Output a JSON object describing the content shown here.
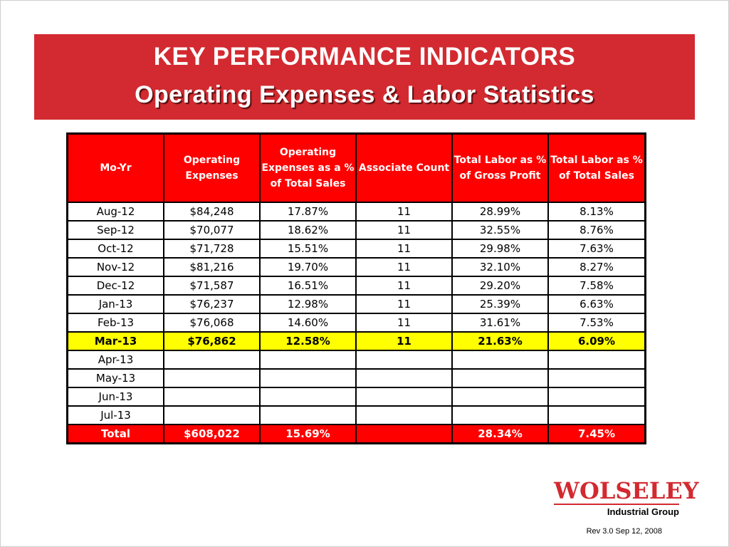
{
  "banner": {
    "title": "KEY PERFORMANCE INDICATORS",
    "subtitle": "Operating Expenses & Labor Statistics"
  },
  "table": {
    "headers": [
      "Mo-Yr",
      "Operating Expenses",
      "Operating Expenses as a % of Total Sales",
      "Associate Count",
      "Total Labor as % of Gross Profit",
      "Total Labor as % of Total Sales"
    ],
    "rows": [
      [
        "Aug-12",
        "$84,248",
        "17.87%",
        "11",
        "28.99%",
        "8.13%"
      ],
      [
        "Sep-12",
        "$70,077",
        "18.62%",
        "11",
        "32.55%",
        "8.76%"
      ],
      [
        "Oct-12",
        "$71,728",
        "15.51%",
        "11",
        "29.98%",
        "7.63%"
      ],
      [
        "Nov-12",
        "$81,216",
        "19.70%",
        "11",
        "32.10%",
        "8.27%"
      ],
      [
        "Dec-12",
        "$71,587",
        "16.51%",
        "11",
        "29.20%",
        "7.58%"
      ],
      [
        "Jan-13",
        "$76,237",
        "12.98%",
        "11",
        "25.39%",
        "6.63%"
      ],
      [
        "Feb-13",
        "$76,068",
        "14.60%",
        "11",
        "31.61%",
        "7.53%"
      ],
      [
        "Mar-13",
        "$76,862",
        "12.58%",
        "11",
        "21.63%",
        "6.09%"
      ],
      [
        "Apr-13",
        "",
        "",
        "",
        "",
        ""
      ],
      [
        "May-13",
        "",
        "",
        "",
        "",
        ""
      ],
      [
        "Jun-13",
        "",
        "",
        "",
        "",
        ""
      ],
      [
        "Jul-13",
        "",
        "",
        "",
        "",
        ""
      ]
    ],
    "highlight_row": 7,
    "highlight_color": "#ffff00",
    "total": [
      "Total",
      "$608,022",
      "15.69%",
      "",
      "28.34%",
      "7.45%"
    ],
    "header_color": "#ff0000"
  },
  "logo": {
    "brand": "WOLSELEY",
    "subtitle": "Industrial Group",
    "color": "#d22a30"
  },
  "footer": {
    "revision": "Rev 3.0 Sep 12, 2008"
  }
}
